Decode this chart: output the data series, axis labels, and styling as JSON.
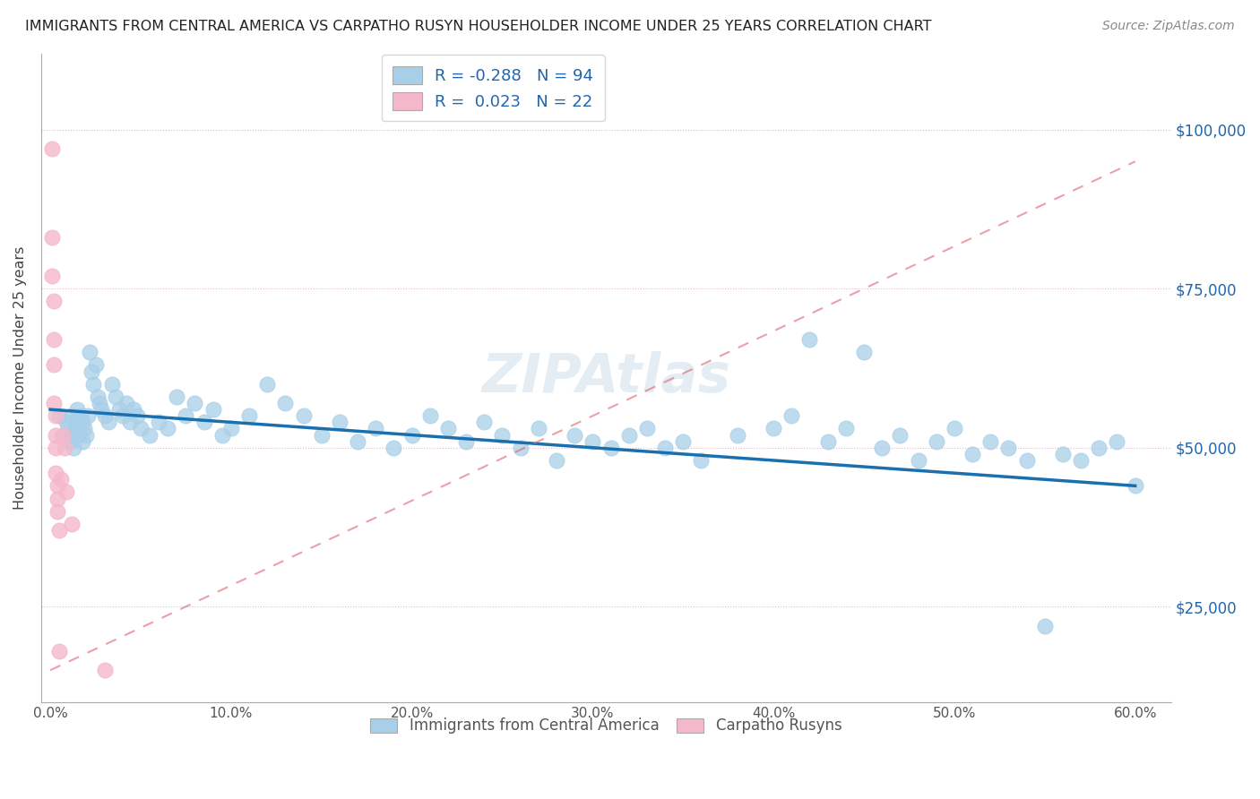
{
  "title": "IMMIGRANTS FROM CENTRAL AMERICA VS CARPATHO RUSYN HOUSEHOLDER INCOME UNDER 25 YEARS CORRELATION CHART",
  "source": "Source: ZipAtlas.com",
  "ylabel": "Householder Income Under 25 years",
  "ytick_labels": [
    "$25,000",
    "$50,000",
    "$75,000",
    "$100,000"
  ],
  "ytick_values": [
    25000,
    50000,
    75000,
    100000
  ],
  "xlim": [
    -0.005,
    0.62
  ],
  "ylim": [
    10000,
    112000
  ],
  "blue_R": "-0.288",
  "blue_N": "94",
  "pink_R": "0.023",
  "pink_N": "22",
  "blue_color": "#a8cfe8",
  "pink_color": "#f5b8cb",
  "blue_line_color": "#1a6faf",
  "pink_line_color": "#e06070",
  "legend1": "Immigrants from Central America",
  "legend2": "Carpatho Rusyns",
  "blue_line_x0": 0.0,
  "blue_line_x1": 0.6,
  "blue_line_y0": 56000,
  "blue_line_y1": 44000,
  "pink_line_x0": 0.0,
  "pink_line_x1": 0.6,
  "pink_line_y0": 15000,
  "pink_line_y1": 95000,
  "blue_x": [
    0.005,
    0.007,
    0.009,
    0.01,
    0.011,
    0.012,
    0.013,
    0.013,
    0.014,
    0.015,
    0.015,
    0.016,
    0.017,
    0.018,
    0.018,
    0.019,
    0.02,
    0.021,
    0.022,
    0.023,
    0.024,
    0.025,
    0.026,
    0.027,
    0.028,
    0.03,
    0.032,
    0.034,
    0.036,
    0.038,
    0.04,
    0.042,
    0.044,
    0.046,
    0.048,
    0.05,
    0.055,
    0.06,
    0.065,
    0.07,
    0.075,
    0.08,
    0.085,
    0.09,
    0.095,
    0.1,
    0.11,
    0.12,
    0.13,
    0.14,
    0.15,
    0.16,
    0.17,
    0.18,
    0.19,
    0.2,
    0.21,
    0.22,
    0.23,
    0.24,
    0.25,
    0.26,
    0.27,
    0.28,
    0.29,
    0.3,
    0.31,
    0.32,
    0.33,
    0.34,
    0.35,
    0.36,
    0.38,
    0.4,
    0.41,
    0.42,
    0.43,
    0.44,
    0.45,
    0.46,
    0.47,
    0.48,
    0.49,
    0.5,
    0.51,
    0.52,
    0.53,
    0.54,
    0.55,
    0.56,
    0.57,
    0.58,
    0.59,
    0.6
  ],
  "blue_y": [
    55000,
    52000,
    54000,
    53000,
    51000,
    55000,
    52000,
    50000,
    54000,
    56000,
    53000,
    52000,
    55000,
    51000,
    54000,
    53000,
    52000,
    55000,
    65000,
    62000,
    60000,
    63000,
    58000,
    57000,
    56000,
    55000,
    54000,
    60000,
    58000,
    56000,
    55000,
    57000,
    54000,
    56000,
    55000,
    53000,
    52000,
    54000,
    53000,
    58000,
    55000,
    57000,
    54000,
    56000,
    52000,
    53000,
    55000,
    60000,
    57000,
    55000,
    52000,
    54000,
    51000,
    53000,
    50000,
    52000,
    55000,
    53000,
    51000,
    54000,
    52000,
    50000,
    53000,
    48000,
    52000,
    51000,
    50000,
    52000,
    53000,
    50000,
    51000,
    48000,
    52000,
    53000,
    55000,
    67000,
    51000,
    53000,
    65000,
    50000,
    52000,
    48000,
    51000,
    53000,
    49000,
    51000,
    50000,
    48000,
    22000,
    49000,
    48000,
    50000,
    51000,
    44000
  ],
  "pink_x": [
    0.001,
    0.001,
    0.001,
    0.002,
    0.002,
    0.002,
    0.002,
    0.003,
    0.003,
    0.003,
    0.003,
    0.004,
    0.004,
    0.004,
    0.005,
    0.005,
    0.006,
    0.007,
    0.008,
    0.009,
    0.012,
    0.03
  ],
  "pink_y": [
    97000,
    83000,
    77000,
    73000,
    67000,
    63000,
    57000,
    55000,
    52000,
    50000,
    46000,
    44000,
    42000,
    40000,
    37000,
    18000,
    45000,
    52000,
    50000,
    43000,
    38000,
    15000
  ]
}
